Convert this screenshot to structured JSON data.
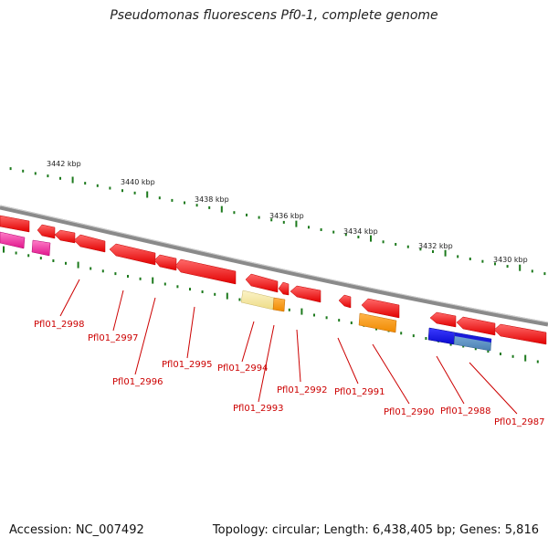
{
  "title": "Pseudomonas fluorescens Pf0-1, complete genome",
  "footer": {
    "accession": "Accession: NC_007492",
    "summary": "Topology: circular; Length: 6,438,405 bp; Genes: 5,816"
  },
  "scale_labels": [
    "3442 kbp",
    "3440 kbp",
    "3438 kbp",
    "3436 kbp",
    "3434 kbp",
    "3432 kbp",
    "3430 kbp"
  ],
  "gene_labels": [
    "Pfl01_2998",
    "Pfl01_2997",
    "Pfl01_2996",
    "Pfl01_2995",
    "Pfl01_2994",
    "Pfl01_2993",
    "Pfl01_2992",
    "Pfl01_2991",
    "Pfl01_2990",
    "Pfl01_2988",
    "Pfl01_2987"
  ],
  "colors": {
    "gene": "#ff1111",
    "pink": "#ff3fa8",
    "pale_yellow": "#f6e8a4",
    "orange": "#ff9b1a",
    "blue": "#1414e6",
    "steel_blue": "#5a8fc0",
    "tick": "#1d7a1d",
    "backbone": "#888888"
  }
}
